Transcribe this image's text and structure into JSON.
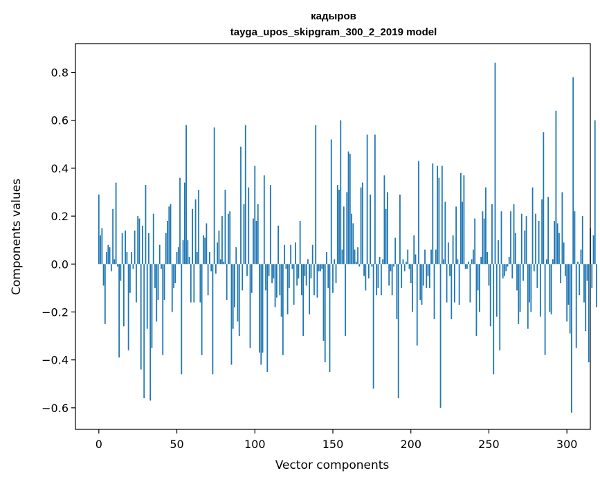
{
  "chart_data": {
    "type": "bar",
    "title": "кадыров",
    "subtitle": "tayga_upos_skipgram_300_2_2019 model",
    "xlabel": "Vector components",
    "ylabel": "Components values",
    "xlim": [
      -15,
      315
    ],
    "ylim": [
      -0.69,
      0.92
    ],
    "xticks": [
      0,
      50,
      100,
      150,
      200,
      250,
      300
    ],
    "xtick_labels": [
      "0",
      "50",
      "100",
      "150",
      "200",
      "250",
      "300"
    ],
    "yticks": [
      -0.6,
      -0.4,
      -0.2,
      0.0,
      0.2,
      0.4,
      0.6,
      0.8
    ],
    "ytick_labels": [
      "−0.6",
      "−0.4",
      "−0.2",
      "0.0",
      "0.2",
      "0.4",
      "0.6",
      "0.8"
    ],
    "bar_color": "#1f77b4",
    "grid": false,
    "values": [
      0.29,
      0.12,
      0.15,
      -0.09,
      -0.25,
      0.05,
      0.08,
      0.07,
      -0.03,
      0.23,
      0.02,
      0.34,
      -0.01,
      -0.39,
      -0.07,
      0.13,
      -0.26,
      0.14,
      0.05,
      -0.36,
      -0.12,
      0.05,
      -0.02,
      0.14,
      -0.16,
      0.2,
      0.19,
      -0.44,
      0.16,
      -0.56,
      0.33,
      -0.27,
      0.13,
      -0.57,
      -0.35,
      0.21,
      -0.1,
      -0.24,
      -0.15,
      0.08,
      -0.02,
      -0.38,
      -0.15,
      0.13,
      0.18,
      0.24,
      0.25,
      -0.2,
      -0.1,
      -0.08,
      0.05,
      0.07,
      0.36,
      -0.46,
      0.1,
      0.34,
      0.58,
      0.1,
      0.03,
      -0.16,
      0.23,
      -0.16,
      0.27,
      0.05,
      0.31,
      -0.16,
      -0.38,
      0.12,
      0.11,
      0.17,
      -0.13,
      0.05,
      -0.03,
      -0.46,
      0.57,
      -0.04,
      0.09,
      0.14,
      0.02,
      0.2,
      0.01,
      0.31,
      -0.15,
      0.21,
      0.22,
      -0.42,
      -0.27,
      -0.18,
      0.07,
      -0.24,
      -0.3,
      0.49,
      -0.11,
      0.25,
      0.58,
      -0.05,
      0.32,
      -0.35,
      -0.12,
      0.19,
      0.41,
      0.18,
      0.25,
      -0.37,
      -0.42,
      -0.37,
      0.37,
      -0.11,
      -0.45,
      -0.05,
      0.33,
      -0.08,
      -0.06,
      -0.18,
      -0.14,
      0.16,
      -0.13,
      -0.22,
      -0.38,
      0.08,
      -0.02,
      -0.21,
      -0.1,
      0.08,
      -0.02,
      -0.17,
      0.09,
      -0.09,
      -0.06,
      0.18,
      -0.13,
      -0.3,
      -0.05,
      -0.09,
      0.02,
      -0.21,
      -0.06,
      0.08,
      -0.13,
      0.58,
      -0.14,
      -0.03,
      -0.03,
      -0.02,
      -0.32,
      -0.41,
      0.05,
      -0.1,
      -0.45,
      0.52,
      -0.12,
      0.02,
      -0.08,
      0.33,
      0.31,
      0.6,
      0.06,
      0.24,
      -0.3,
      0.3,
      0.47,
      0.46,
      0.21,
      0.17,
      0.06,
      0.01,
      0.07,
      -0.01,
      0.32,
      0.34,
      -0.05,
      -0.11,
      0.54,
      -0.06,
      0.29,
      -0.01,
      -0.52,
      0.54,
      -0.13,
      -0.1,
      0.03,
      -0.13,
      0.02,
      0.37,
      0.23,
      0.3,
      -0.09,
      -0.03,
      -0.13,
      -0.01,
      0.11,
      -0.23,
      -0.56,
      0.29,
      -0.1,
      0.02,
      -0.03,
      0.01,
      0.06,
      -0.02,
      -0.08,
      -0.2,
      0.12,
      0.04,
      -0.34,
      0.43,
      -0.15,
      -0.17,
      -0.09,
      0.06,
      -0.1,
      -0.05,
      -0.1,
      0.06,
      0.42,
      -0.23,
      0.06,
      0.41,
      0.36,
      -0.6,
      0.41,
      0.02,
      0.26,
      -0.16,
      0.09,
      -0.05,
      -0.23,
      0.12,
      -0.16,
      0.24,
      0.02,
      -0.17,
      0.38,
      0.26,
      0.37,
      -0.02,
      -0.02,
      0.01,
      -0.16,
      0.02,
      0.06,
      0.19,
      -0.3,
      -0.11,
      -0.2,
      0.03,
      0.22,
      0.19,
      0.32,
      0.05,
      -0.09,
      -0.26,
      0.25,
      -0.46,
      0.84,
      -0.22,
      0.1,
      -0.36,
      0.22,
      -0.06,
      -0.05,
      -0.03,
      -0.01,
      0.03,
      0.22,
      -0.06,
      0.25,
      0.13,
      -0.11,
      -0.25,
      -0.2,
      0.21,
      -0.07,
      0.14,
      0.2,
      -0.27,
      -0.16,
      -0.2,
      0.32,
      -0.03,
      0.21,
      -0.1,
      0.18,
      -0.22,
      0.27,
      0.55,
      -0.38,
      0.02,
      0.28,
      -0.2,
      -0.21,
      0.02,
      0.18,
      0.64,
      0.17,
      0.13,
      -0.08,
      0.3,
      0.09,
      -0.05,
      -0.24,
      -0.17,
      -0.29,
      -0.62,
      0.78,
      0.22,
      -0.35,
      0.01,
      -0.13,
      0.06,
      0.2,
      -0.16,
      -0.28,
      -0.07,
      -0.41,
      0.15,
      -0.1,
      0.12,
      0.6,
      -0.18
    ]
  }
}
